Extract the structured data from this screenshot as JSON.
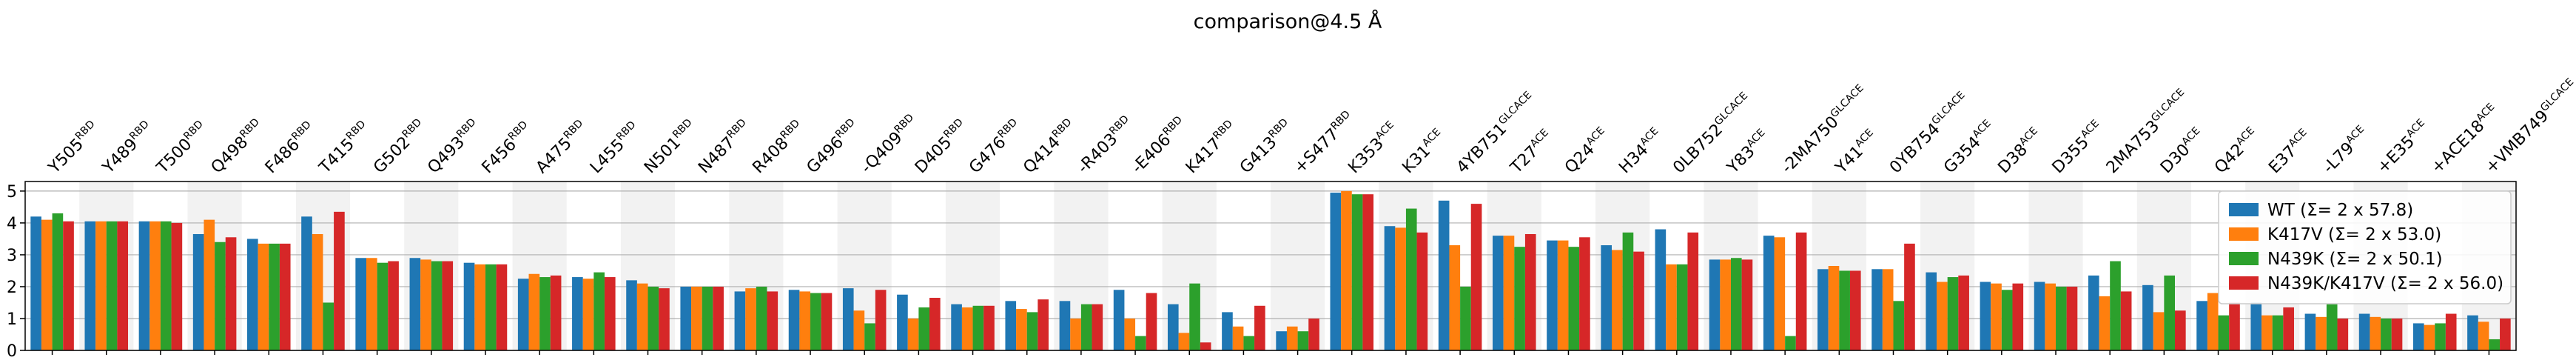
{
  "chart_data": {
    "type": "bar",
    "title": "comparison@4.5 Å",
    "ylim": [
      0,
      5.3
    ],
    "yticks": [
      0,
      1,
      2,
      3,
      4,
      5
    ],
    "grid": true,
    "legend_position": "right",
    "categories": [
      {
        "base": "Y505",
        "sup": "RBD",
        "color": "#000000"
      },
      {
        "base": "Y489",
        "sup": "RBD",
        "color": "#000000"
      },
      {
        "base": "T500",
        "sup": "RBD",
        "color": "#000000"
      },
      {
        "base": "Q498",
        "sup": "RBD",
        "color": "#000000"
      },
      {
        "base": "F486",
        "sup": "RBD",
        "color": "#000000"
      },
      {
        "base": "T415",
        "sup": "RBD",
        "color": "#000000"
      },
      {
        "base": "G502",
        "sup": "RBD",
        "color": "#000000"
      },
      {
        "base": "Q493",
        "sup": "RBD",
        "color": "#000000"
      },
      {
        "base": "F456",
        "sup": "RBD",
        "color": "#000000"
      },
      {
        "base": "A475",
        "sup": "RBD",
        "color": "#000000"
      },
      {
        "base": "L455",
        "sup": "RBD",
        "color": "#000000"
      },
      {
        "base": "N501",
        "sup": "RBD",
        "color": "#000000"
      },
      {
        "base": "N487",
        "sup": "RBD",
        "color": "#000000"
      },
      {
        "base": "R408",
        "sup": "RBD",
        "color": "#000000"
      },
      {
        "base": "G496",
        "sup": "RBD",
        "color": "#000000"
      },
      {
        "base": "-Q409",
        "sup": "RBD",
        "color": "#2ca02c"
      },
      {
        "base": "D405",
        "sup": "RBD",
        "color": "#000000"
      },
      {
        "base": "G476",
        "sup": "RBD",
        "color": "#000000"
      },
      {
        "base": "Q414",
        "sup": "RBD",
        "color": "#000000"
      },
      {
        "base": "-R403",
        "sup": "RBD",
        "color": "#ff7f0e"
      },
      {
        "base": "-E406",
        "sup": "RBD",
        "color": "#2ca02c"
      },
      {
        "base": "K417",
        "sup": "RBD",
        "color": "#000000"
      },
      {
        "base": "G413",
        "sup": "RBD",
        "color": "#000000"
      },
      {
        "base": "+S477",
        "sup": "RBD",
        "color": "#d62728"
      },
      {
        "base": "K353",
        "sup": "ACE",
        "color": "#000000"
      },
      {
        "base": "K31",
        "sup": "ACE",
        "color": "#000000"
      },
      {
        "base": "4YB751",
        "sup": "GLCACE",
        "color": "#000000"
      },
      {
        "base": "T27",
        "sup": "ACE",
        "color": "#000000"
      },
      {
        "base": "Q24",
        "sup": "ACE",
        "color": "#000000"
      },
      {
        "base": "H34",
        "sup": "ACE",
        "color": "#000000"
      },
      {
        "base": "0LB752",
        "sup": "GLCACE",
        "color": "#000000"
      },
      {
        "base": "Y83",
        "sup": "ACE",
        "color": "#000000"
      },
      {
        "base": "-2MA750",
        "sup": "GLCACE",
        "color": "#2ca02c"
      },
      {
        "base": "Y41",
        "sup": "ACE",
        "color": "#000000"
      },
      {
        "base": "0YB754",
        "sup": "GLCACE",
        "color": "#000000"
      },
      {
        "base": "G354",
        "sup": "ACE",
        "color": "#000000"
      },
      {
        "base": "D38",
        "sup": "ACE",
        "color": "#000000"
      },
      {
        "base": "D355",
        "sup": "ACE",
        "color": "#000000"
      },
      {
        "base": "2MA753",
        "sup": "GLCACE",
        "color": "#000000"
      },
      {
        "base": "D30",
        "sup": "ACE",
        "color": "#000000"
      },
      {
        "base": "Q42",
        "sup": "ACE",
        "color": "#000000"
      },
      {
        "base": "E37",
        "sup": "ACE",
        "color": "#000000"
      },
      {
        "base": "-L79",
        "sup": "ACE",
        "color": "#d62728"
      },
      {
        "base": "+E35",
        "sup": "ACE",
        "color": "#1f77b4"
      },
      {
        "base": "+ACE18",
        "sup": "ACE",
        "color": "#d62728"
      },
      {
        "base": "+VMB749",
        "sup": "GLCACE",
        "color": "#1f77b4"
      }
    ],
    "series": [
      {
        "name": "WT (Σ= 2 x 57.8)",
        "color": "#1f77b4",
        "values": [
          4.2,
          4.05,
          4.05,
          3.65,
          3.5,
          4.2,
          2.9,
          2.9,
          2.75,
          2.25,
          2.3,
          2.2,
          2.0,
          1.85,
          1.9,
          1.95,
          1.75,
          1.45,
          1.55,
          1.55,
          1.9,
          1.45,
          1.2,
          0.6,
          4.95,
          3.9,
          4.7,
          3.6,
          3.45,
          3.3,
          3.8,
          2.85,
          3.6,
          2.55,
          2.55,
          2.45,
          2.15,
          2.15,
          2.35,
          2.05,
          1.55,
          1.5,
          1.15,
          1.15,
          0.85,
          1.1
        ]
      },
      {
        "name": "K417V (Σ= 2 x 53.0)",
        "color": "#ff7f0e",
        "values": [
          4.1,
          4.05,
          4.05,
          4.1,
          3.35,
          3.65,
          2.9,
          2.85,
          2.7,
          2.4,
          2.25,
          2.1,
          2.0,
          1.95,
          1.85,
          1.25,
          1.0,
          1.35,
          1.3,
          1.0,
          1.0,
          0.55,
          0.75,
          0.75,
          5.0,
          3.85,
          3.3,
          3.6,
          3.45,
          3.15,
          2.7,
          2.85,
          3.55,
          2.65,
          2.55,
          2.15,
          2.1,
          2.1,
          1.7,
          1.2,
          1.8,
          1.1,
          1.05,
          1.05,
          0.8,
          0.9
        ]
      },
      {
        "name": "N439K (Σ= 2 x 50.1)",
        "color": "#2ca02c",
        "values": [
          4.3,
          4.05,
          4.05,
          3.4,
          3.35,
          1.5,
          2.75,
          2.8,
          2.7,
          2.3,
          2.45,
          2.0,
          2.0,
          2.0,
          1.8,
          0.85,
          1.35,
          1.4,
          1.2,
          1.45,
          0.45,
          2.1,
          0.45,
          0.6,
          4.9,
          4.45,
          2.0,
          3.25,
          3.25,
          3.7,
          2.7,
          2.9,
          0.45,
          2.5,
          1.55,
          2.3,
          1.9,
          2.0,
          2.8,
          2.35,
          1.1,
          1.1,
          1.45,
          1.0,
          0.85,
          0.35
        ]
      },
      {
        "name": "N439K/K417V (Σ= 2 x 56.0)",
        "color": "#d62728",
        "values": [
          4.05,
          4.05,
          4.0,
          3.55,
          3.35,
          4.35,
          2.8,
          2.8,
          2.7,
          2.35,
          2.3,
          1.95,
          2.0,
          1.85,
          1.8,
          1.9,
          1.65,
          1.4,
          1.6,
          1.45,
          1.8,
          0.25,
          1.4,
          1.0,
          4.9,
          3.7,
          4.6,
          3.65,
          3.55,
          3.1,
          3.7,
          2.85,
          3.7,
          2.5,
          3.35,
          2.35,
          2.1,
          2.0,
          1.85,
          1.25,
          1.5,
          1.35,
          1.0,
          1.0,
          1.15,
          1.0
        ]
      }
    ]
  }
}
